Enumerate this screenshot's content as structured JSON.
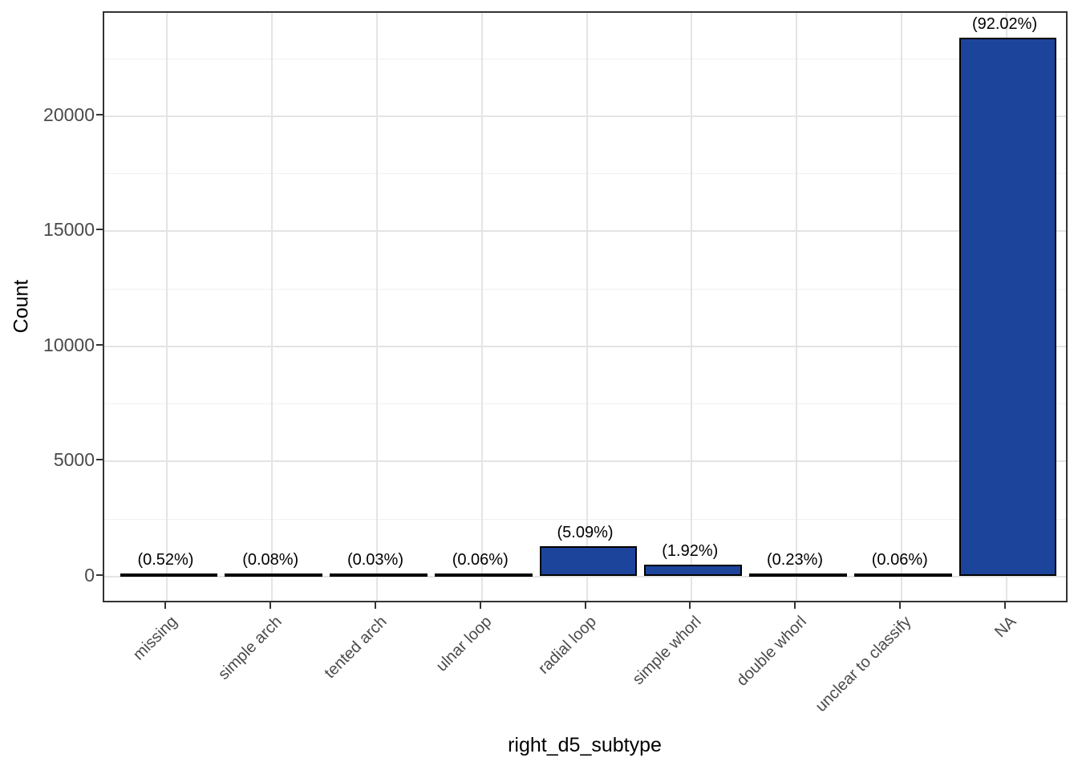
{
  "figure": {
    "background": "#FFFFFF",
    "panel_border_color": "#333333",
    "grid_major_color": "#E4E4E4",
    "grid_minor_color": "#F0F0F0",
    "tick_color": "#333333",
    "axis_text_color": "#4A4A4A",
    "axis_title_color": "#000000",
    "bar_label_color": "#000000"
  },
  "chart_data": {
    "type": "bar",
    "title": "",
    "xlabel": "right_d5_subtype",
    "ylabel": "Count",
    "categories": [
      "missing",
      "simple arch",
      "tented arch",
      "ulnar loop",
      "radial loop",
      "simple whorl",
      "double whorl",
      "unclear to classify",
      "NA"
    ],
    "values": [
      132,
      20,
      8,
      15,
      1294,
      488,
      58,
      15,
      23394
    ],
    "bar_labels": [
      "(0.52%)",
      "(0.08%)",
      "(0.03%)",
      "(0.06%)",
      "(5.09%)",
      "(1.92%)",
      "(0.23%)",
      "(0.06%)",
      "(92.02%)"
    ],
    "y_ticks": [
      0,
      5000,
      10000,
      15000,
      20000
    ],
    "y_tick_labels": [
      "0",
      "5000",
      "10000",
      "15000",
      "20000"
    ],
    "y_minor_ticks": [
      2500,
      7500,
      12500,
      17500,
      22500
    ],
    "ylim": [
      -1190,
      24550
    ],
    "grid": true,
    "legend": "none",
    "bar_fill": "#1C449B",
    "bar_stroke": "#000000",
    "bar_width_fraction": 0.9
  }
}
